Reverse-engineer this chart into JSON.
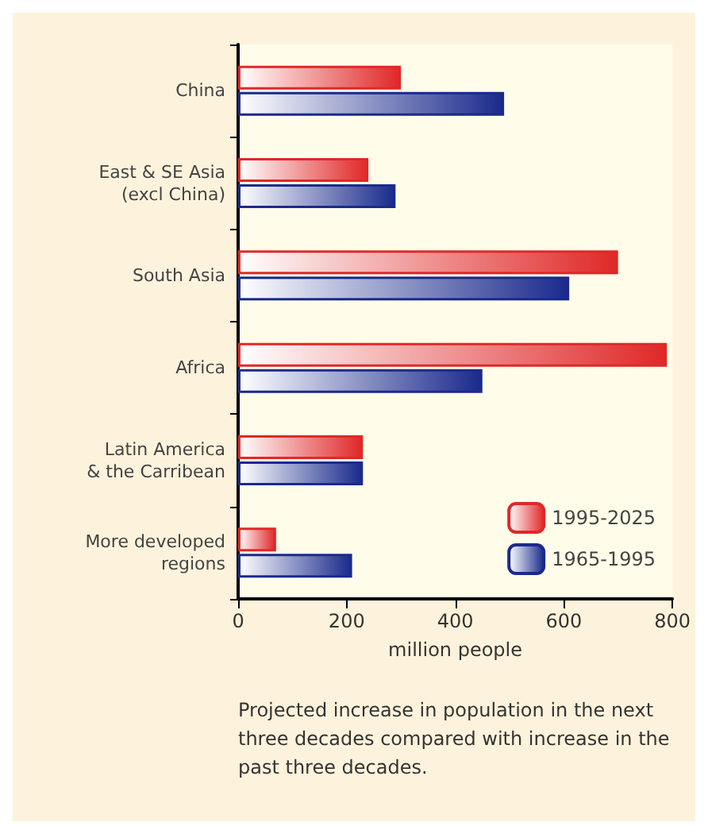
{
  "chart_data": {
    "type": "bar",
    "orientation": "horizontal",
    "categories": [
      "China",
      "East & SE Asia\n(excl China)",
      "South Asia",
      "Africa",
      "Latin America\n& the Carribean",
      "More developed\nregions"
    ],
    "series": [
      {
        "name": "1995-2025",
        "color": "#e02828",
        "values": [
          300,
          240,
          700,
          790,
          230,
          70
        ]
      },
      {
        "name": "1965-1995",
        "color": "#1a2a8c",
        "values": [
          490,
          290,
          610,
          450,
          230,
          210
        ]
      }
    ],
    "xlim": [
      0,
      800
    ],
    "xticks": [
      0,
      200,
      400,
      600,
      800
    ],
    "xlabel": "million people",
    "legend": "bottom right",
    "grid": false,
    "annotations": [
      "Projected increase in population in the next three decades compared with increase in the past three decades."
    ]
  }
}
